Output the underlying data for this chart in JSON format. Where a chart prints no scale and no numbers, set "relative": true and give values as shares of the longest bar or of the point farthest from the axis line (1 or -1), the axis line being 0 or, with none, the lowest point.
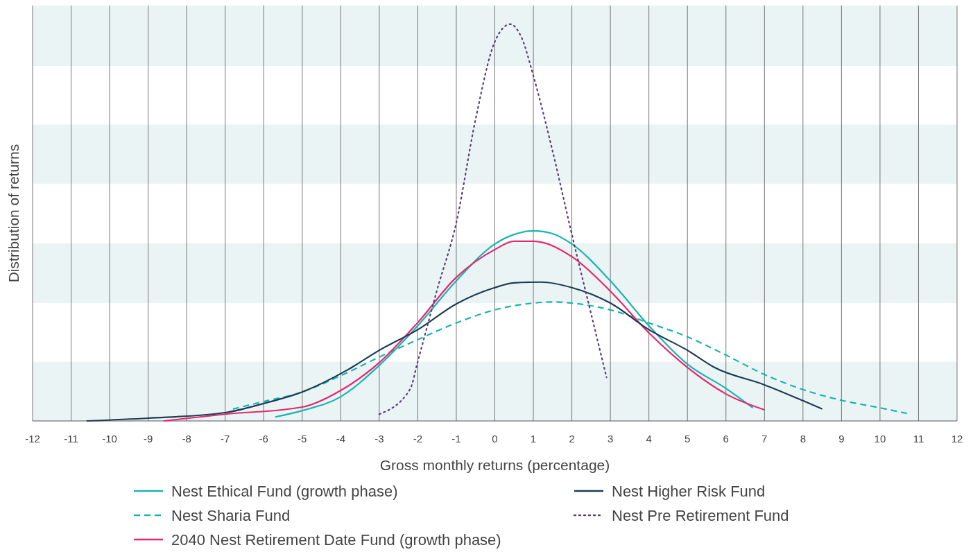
{
  "chart_data": {
    "type": "line",
    "relative": true,
    "xlabel": "Gross monthly returns (percentage)",
    "ylabel": "Distribution of returns",
    "xlim": [
      -12,
      12
    ],
    "xticks": [
      -12,
      -11,
      -10,
      -9,
      -8,
      -7,
      -6,
      -5,
      -4,
      -3,
      -2,
      -1,
      0,
      1,
      2,
      3,
      4,
      5,
      6,
      7,
      8,
      9,
      10,
      11,
      12
    ],
    "grid": "x",
    "legend": "bottom",
    "bands": [
      {
        "axis": "y",
        "from": 0,
        "to": 0.149,
        "color": "#eaf4f4"
      },
      {
        "axis": "y",
        "from": 0.297,
        "to": 0.448,
        "color": "#eaf4f4"
      },
      {
        "axis": "y",
        "from": 0.598,
        "to": 0.747,
        "color": "#eaf4f4"
      },
      {
        "axis": "y",
        "from": 0.895,
        "to": 1.047,
        "color": "#eaf4f4"
      }
    ],
    "series": [
      {
        "name": "Nest Ethical Fund (growth phase)",
        "color": "#1ab3b0",
        "line_style": "solid",
        "x": [
          -5.7,
          -5,
          -4,
          -3,
          -2,
          -1,
          0,
          0.5,
          1,
          1.5,
          2,
          3,
          4,
          5,
          6,
          6.7
        ],
        "values": [
          0.01,
          0.026,
          0.061,
          0.14,
          0.24,
          0.353,
          0.446,
          0.47,
          0.479,
          0.472,
          0.446,
          0.353,
          0.24,
          0.143,
          0.082,
          0.033
        ]
      },
      {
        "name": "Nest Sharia Fund",
        "color": "#1ab3b0",
        "line_style": "dashed",
        "x": [
          -6.8,
          -6,
          -5,
          -4,
          -3,
          -2,
          -1,
          0,
          1,
          1.5,
          2,
          3,
          4,
          5,
          6,
          7,
          8,
          9,
          10,
          10.7
        ],
        "values": [
          0.03,
          0.049,
          0.073,
          0.114,
          0.161,
          0.205,
          0.247,
          0.28,
          0.297,
          0.3,
          0.297,
          0.28,
          0.247,
          0.212,
          0.166,
          0.117,
          0.079,
          0.052,
          0.033,
          0.019
        ]
      },
      {
        "name": "2040 Nest Retirement Date Fund (growth phase)",
        "color": "#e6266f",
        "line_style": "solid",
        "x": [
          -8.6,
          -7,
          -5,
          -4,
          -3,
          -2,
          -1,
          0,
          0.5,
          1,
          2,
          3,
          4,
          5,
          6,
          7
        ],
        "values": [
          0,
          0.017,
          0.035,
          0.077,
          0.147,
          0.248,
          0.362,
          0.432,
          0.453,
          0.453,
          0.414,
          0.327,
          0.222,
          0.135,
          0.068,
          0.028
        ]
      },
      {
        "name": "Nest Higher Risk Fund",
        "color": "#1d3c55",
        "line_style": "solid",
        "x": [
          -10.6,
          -9,
          -7,
          -6,
          -5,
          -3.8,
          -3,
          -2,
          -1,
          0,
          0.5,
          1.2,
          2,
          3,
          4,
          5,
          5.7,
          7,
          8,
          8.5
        ],
        "values": [
          0,
          0.007,
          0.021,
          0.044,
          0.073,
          0.13,
          0.178,
          0.23,
          0.295,
          0.336,
          0.348,
          0.35,
          0.336,
          0.297,
          0.23,
          0.178,
          0.135,
          0.091,
          0.051,
          0.03
        ]
      },
      {
        "name": "Nest Pre Retirement Fund",
        "color": "#5b3f7a",
        "line_style": "dotted",
        "x": [
          -3,
          -2.2,
          -2,
          -1.5,
          -1,
          -0.5,
          0,
          0.4,
          0.7,
          1,
          1.5,
          2,
          2.5,
          2.9
        ],
        "values": [
          0.017,
          0.08,
          0.15,
          0.33,
          0.5,
          0.76,
          0.956,
          1,
          0.965,
          0.87,
          0.68,
          0.47,
          0.27,
          0.11
        ]
      }
    ]
  }
}
